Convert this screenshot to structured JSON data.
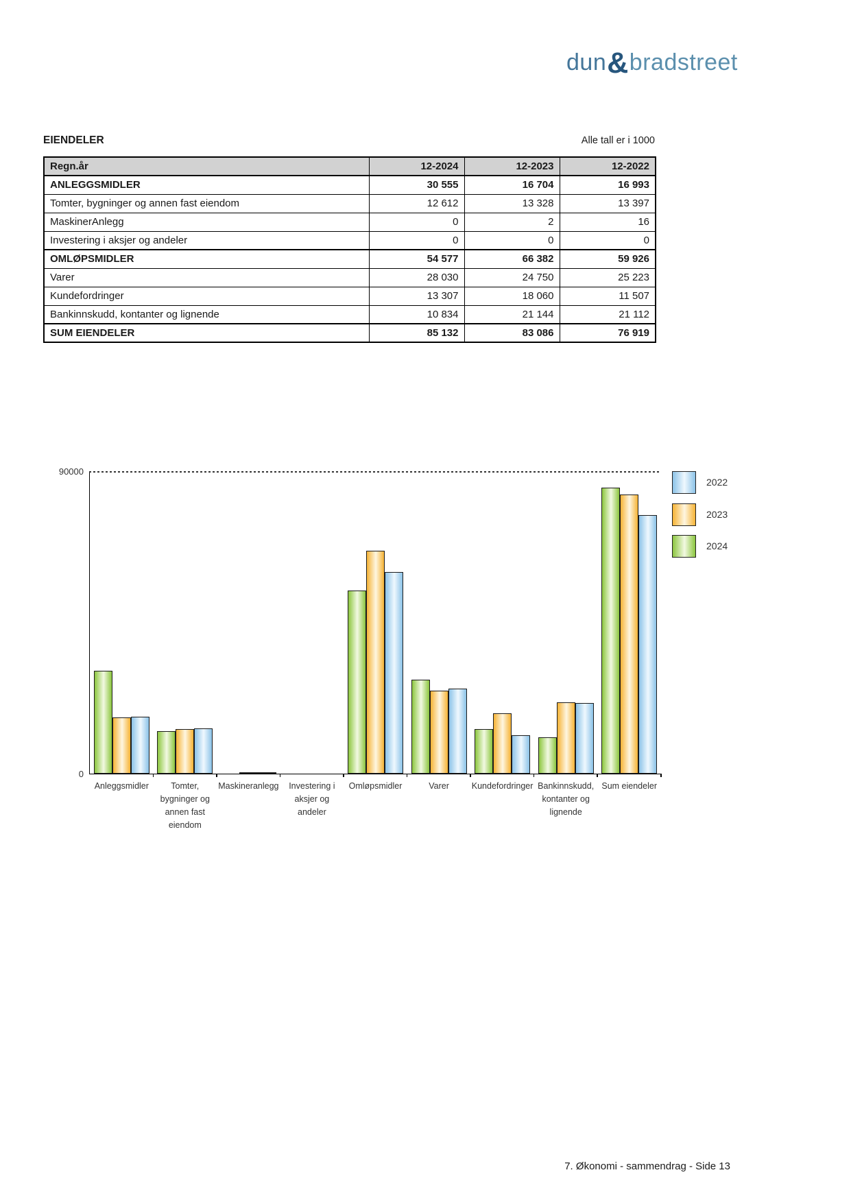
{
  "logo": {
    "part1": "dun",
    "amp": "&",
    "part2": "bradstreet"
  },
  "table": {
    "title": "EIENDELER",
    "unit_note": "Alle tall er i 1000",
    "header": {
      "label": "Regn.år",
      "cols": [
        "12-2024",
        "12-2023",
        "12-2022"
      ]
    },
    "rows": [
      {
        "label": "ANLEGGSMIDLER",
        "values": [
          "30 555",
          "16 704",
          "16 993"
        ],
        "bold": true
      },
      {
        "label": "Tomter, bygninger og annen fast eiendom",
        "values": [
          "12 612",
          "13 328",
          "13 397"
        ],
        "bold": false
      },
      {
        "label": "MaskinerAnlegg",
        "values": [
          "0",
          "2",
          "16"
        ],
        "bold": false
      },
      {
        "label": "Investering i aksjer og andeler",
        "values": [
          "0",
          "0",
          "0"
        ],
        "bold": false
      },
      {
        "label": "OMLØPSMIDLER",
        "values": [
          "54 577",
          "66 382",
          "59 926"
        ],
        "bold": true
      },
      {
        "label": "Varer",
        "values": [
          "28 030",
          "24 750",
          "25 223"
        ],
        "bold": false
      },
      {
        "label": "Kundefordringer",
        "values": [
          "13 307",
          "18 060",
          "11 507"
        ],
        "bold": false
      },
      {
        "label": "Bankinnskudd, kontanter og lignende",
        "values": [
          "10 834",
          "21 144",
          "21 112"
        ],
        "bold": false
      },
      {
        "label": "SUM EIENDELER",
        "values": [
          "85 132",
          "83 086",
          "76 919"
        ],
        "bold": true
      }
    ]
  },
  "chart_data": {
    "type": "bar",
    "title": "",
    "categories": [
      "Anleggsmidler",
      "Tomter, bygninger og annen fast eiendom",
      "Maskineranlegg",
      "Investering i aksjer og andeler",
      "Omløpsmidler",
      "Varer",
      "Kundefordringer",
      "Bankinnskudd, kontanter og lignende",
      "Sum eiendeler"
    ],
    "category_label_lines": [
      [
        "Anleggsmidler"
      ],
      [
        "Tomter,",
        "bygninger og",
        "annen fast",
        "eiendom"
      ],
      [
        "Maskineranlegg"
      ],
      [
        "Investering i",
        "aksjer og",
        "andeler"
      ],
      [
        "Omløpsmidler"
      ],
      [
        "Varer"
      ],
      [
        "Kundefordringer"
      ],
      [
        "Bankinnskudd,",
        "kontanter og",
        "lignende"
      ],
      [
        "Sum eiendeler"
      ]
    ],
    "series": [
      {
        "name": "2024",
        "color_edge": "#8cc63f",
        "color_center": "#f2f9e2",
        "values": [
          30555,
          12612,
          0,
          0,
          54577,
          28030,
          13307,
          10834,
          85132
        ]
      },
      {
        "name": "2023",
        "color_edge": "#f6b335",
        "color_center": "#fef6e1",
        "values": [
          16704,
          13328,
          2,
          0,
          66382,
          24750,
          18060,
          21144,
          83086
        ]
      },
      {
        "name": "2022",
        "color_edge": "#8cc3e8",
        "color_center": "#eff8fe",
        "values": [
          16993,
          13397,
          16,
          0,
          59926,
          25223,
          11507,
          21112,
          76919
        ]
      }
    ],
    "ylim": [
      0,
      90000
    ],
    "ymax_label": "90000",
    "ymin_label": "0",
    "grid": "dashed line at 90000 only",
    "legend_position": "top-right",
    "legend_order_top_to_bottom": [
      "2022",
      "2023",
      "2024"
    ]
  },
  "footer": {
    "text": "7. Økonomi - sammendrag - Side 13"
  }
}
